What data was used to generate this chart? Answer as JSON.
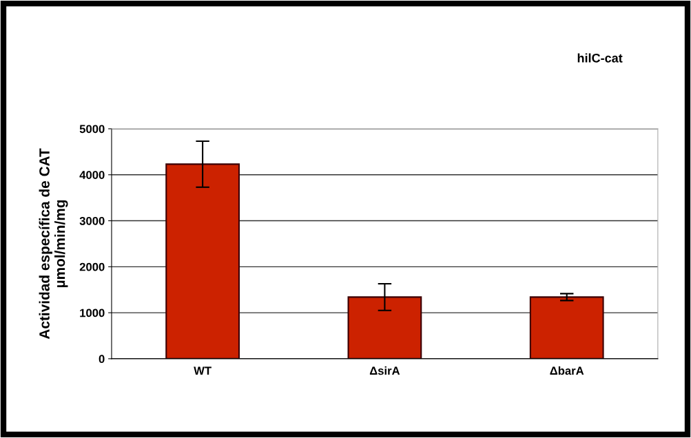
{
  "chart_data": {
    "type": "bar",
    "title": "hilC-cat",
    "ylabel": "Actividad específica de CAT\nµmol/min/mg",
    "categories": [
      "WT",
      "ΔsirA",
      "ΔbarA"
    ],
    "values": [
      4230,
      1340,
      1340
    ],
    "errors": [
      500,
      290,
      75
    ],
    "color": "#cc2200",
    "ylim": [
      0,
      5000
    ],
    "yticks": [
      0,
      1000,
      2000,
      3000,
      4000,
      5000
    ],
    "grid": "y"
  }
}
